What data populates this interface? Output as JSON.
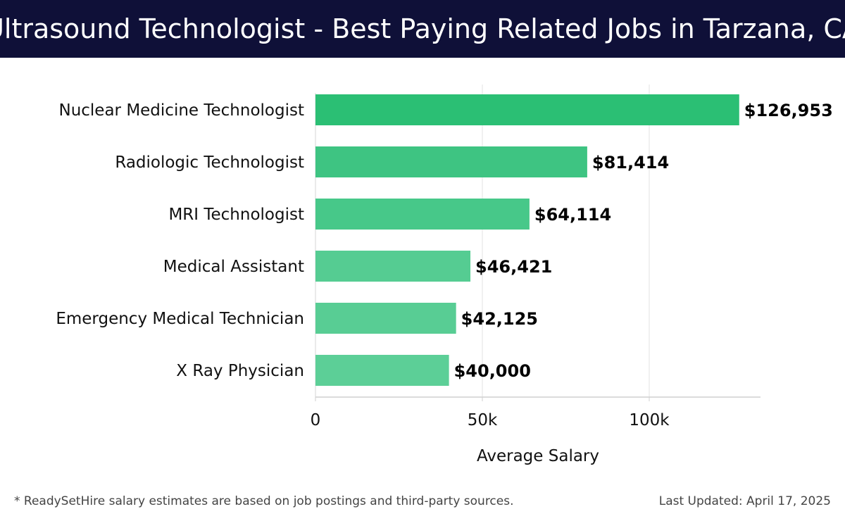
{
  "header": {
    "title": "Ultrasound Technologist - Best Paying Related Jobs in Tarzana, CA"
  },
  "chart_data": {
    "type": "bar",
    "orientation": "horizontal",
    "categories": [
      "Nuclear Medicine Technologist",
      "Radiologic Technologist",
      "MRI Technologist",
      "Medical Assistant",
      "Emergency Medical Technician",
      "X Ray Physician"
    ],
    "values": [
      126953,
      81414,
      64114,
      46421,
      42125,
      40000
    ],
    "value_labels": [
      "$126,953",
      "$81,414",
      "$64,114",
      "$46,421",
      "$42,125",
      "$40,000"
    ],
    "bar_colors": [
      "#2bbf74",
      "#3ec482",
      "#47c889",
      "#55cc92",
      "#58cd94",
      "#5ccf97"
    ],
    "xlabel": "Average Salary",
    "ylabel": "",
    "xlim": [
      0,
      133000
    ],
    "xticks": [
      0,
      50000,
      100000
    ],
    "xtick_labels": [
      "0",
      "50k",
      "100k"
    ],
    "grid": true
  },
  "footer": {
    "note": "* ReadySetHire salary estimates are based on job postings and third-party sources.",
    "updated": "Last Updated: April 17, 2025"
  }
}
